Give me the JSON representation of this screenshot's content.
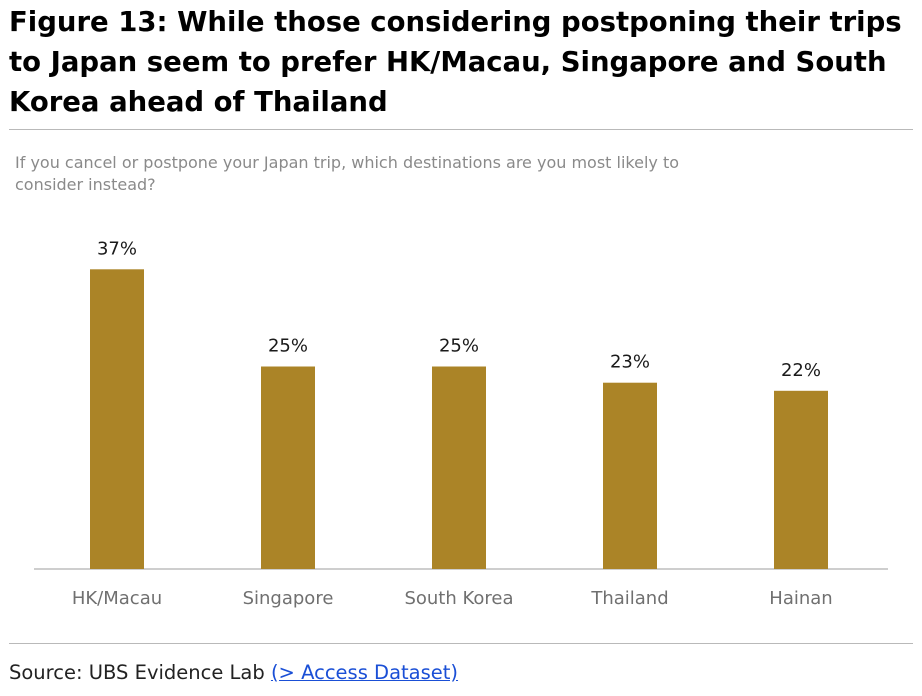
{
  "figure": {
    "title": "Figure 13: While those considering postponing their trips to Japan seem to prefer HK/Macau, Singapore and South Korea ahead of Thailand"
  },
  "chart_data": {
    "type": "bar",
    "subtitle": "If you cancel or postpone your Japan trip, which destinations are you most likely to consider instead?",
    "categories": [
      "HK/Macau",
      "Singapore",
      "South Korea",
      "Thailand",
      "Hainan"
    ],
    "values": [
      37,
      25,
      25,
      23,
      22
    ],
    "data_labels": [
      "37%",
      "25%",
      "25%",
      "23%",
      "22%"
    ],
    "unit": "%",
    "ylim": [
      0,
      40
    ],
    "grid": false,
    "legend": "none",
    "bar_color": "#ab8427",
    "axis_color": "#bdbdbd",
    "category_label_color": "#707070"
  },
  "source": {
    "prefix": "Source: UBS Evidence Lab ",
    "link_text": "(> Access Dataset)",
    "link_color": "#1a4fd6"
  }
}
